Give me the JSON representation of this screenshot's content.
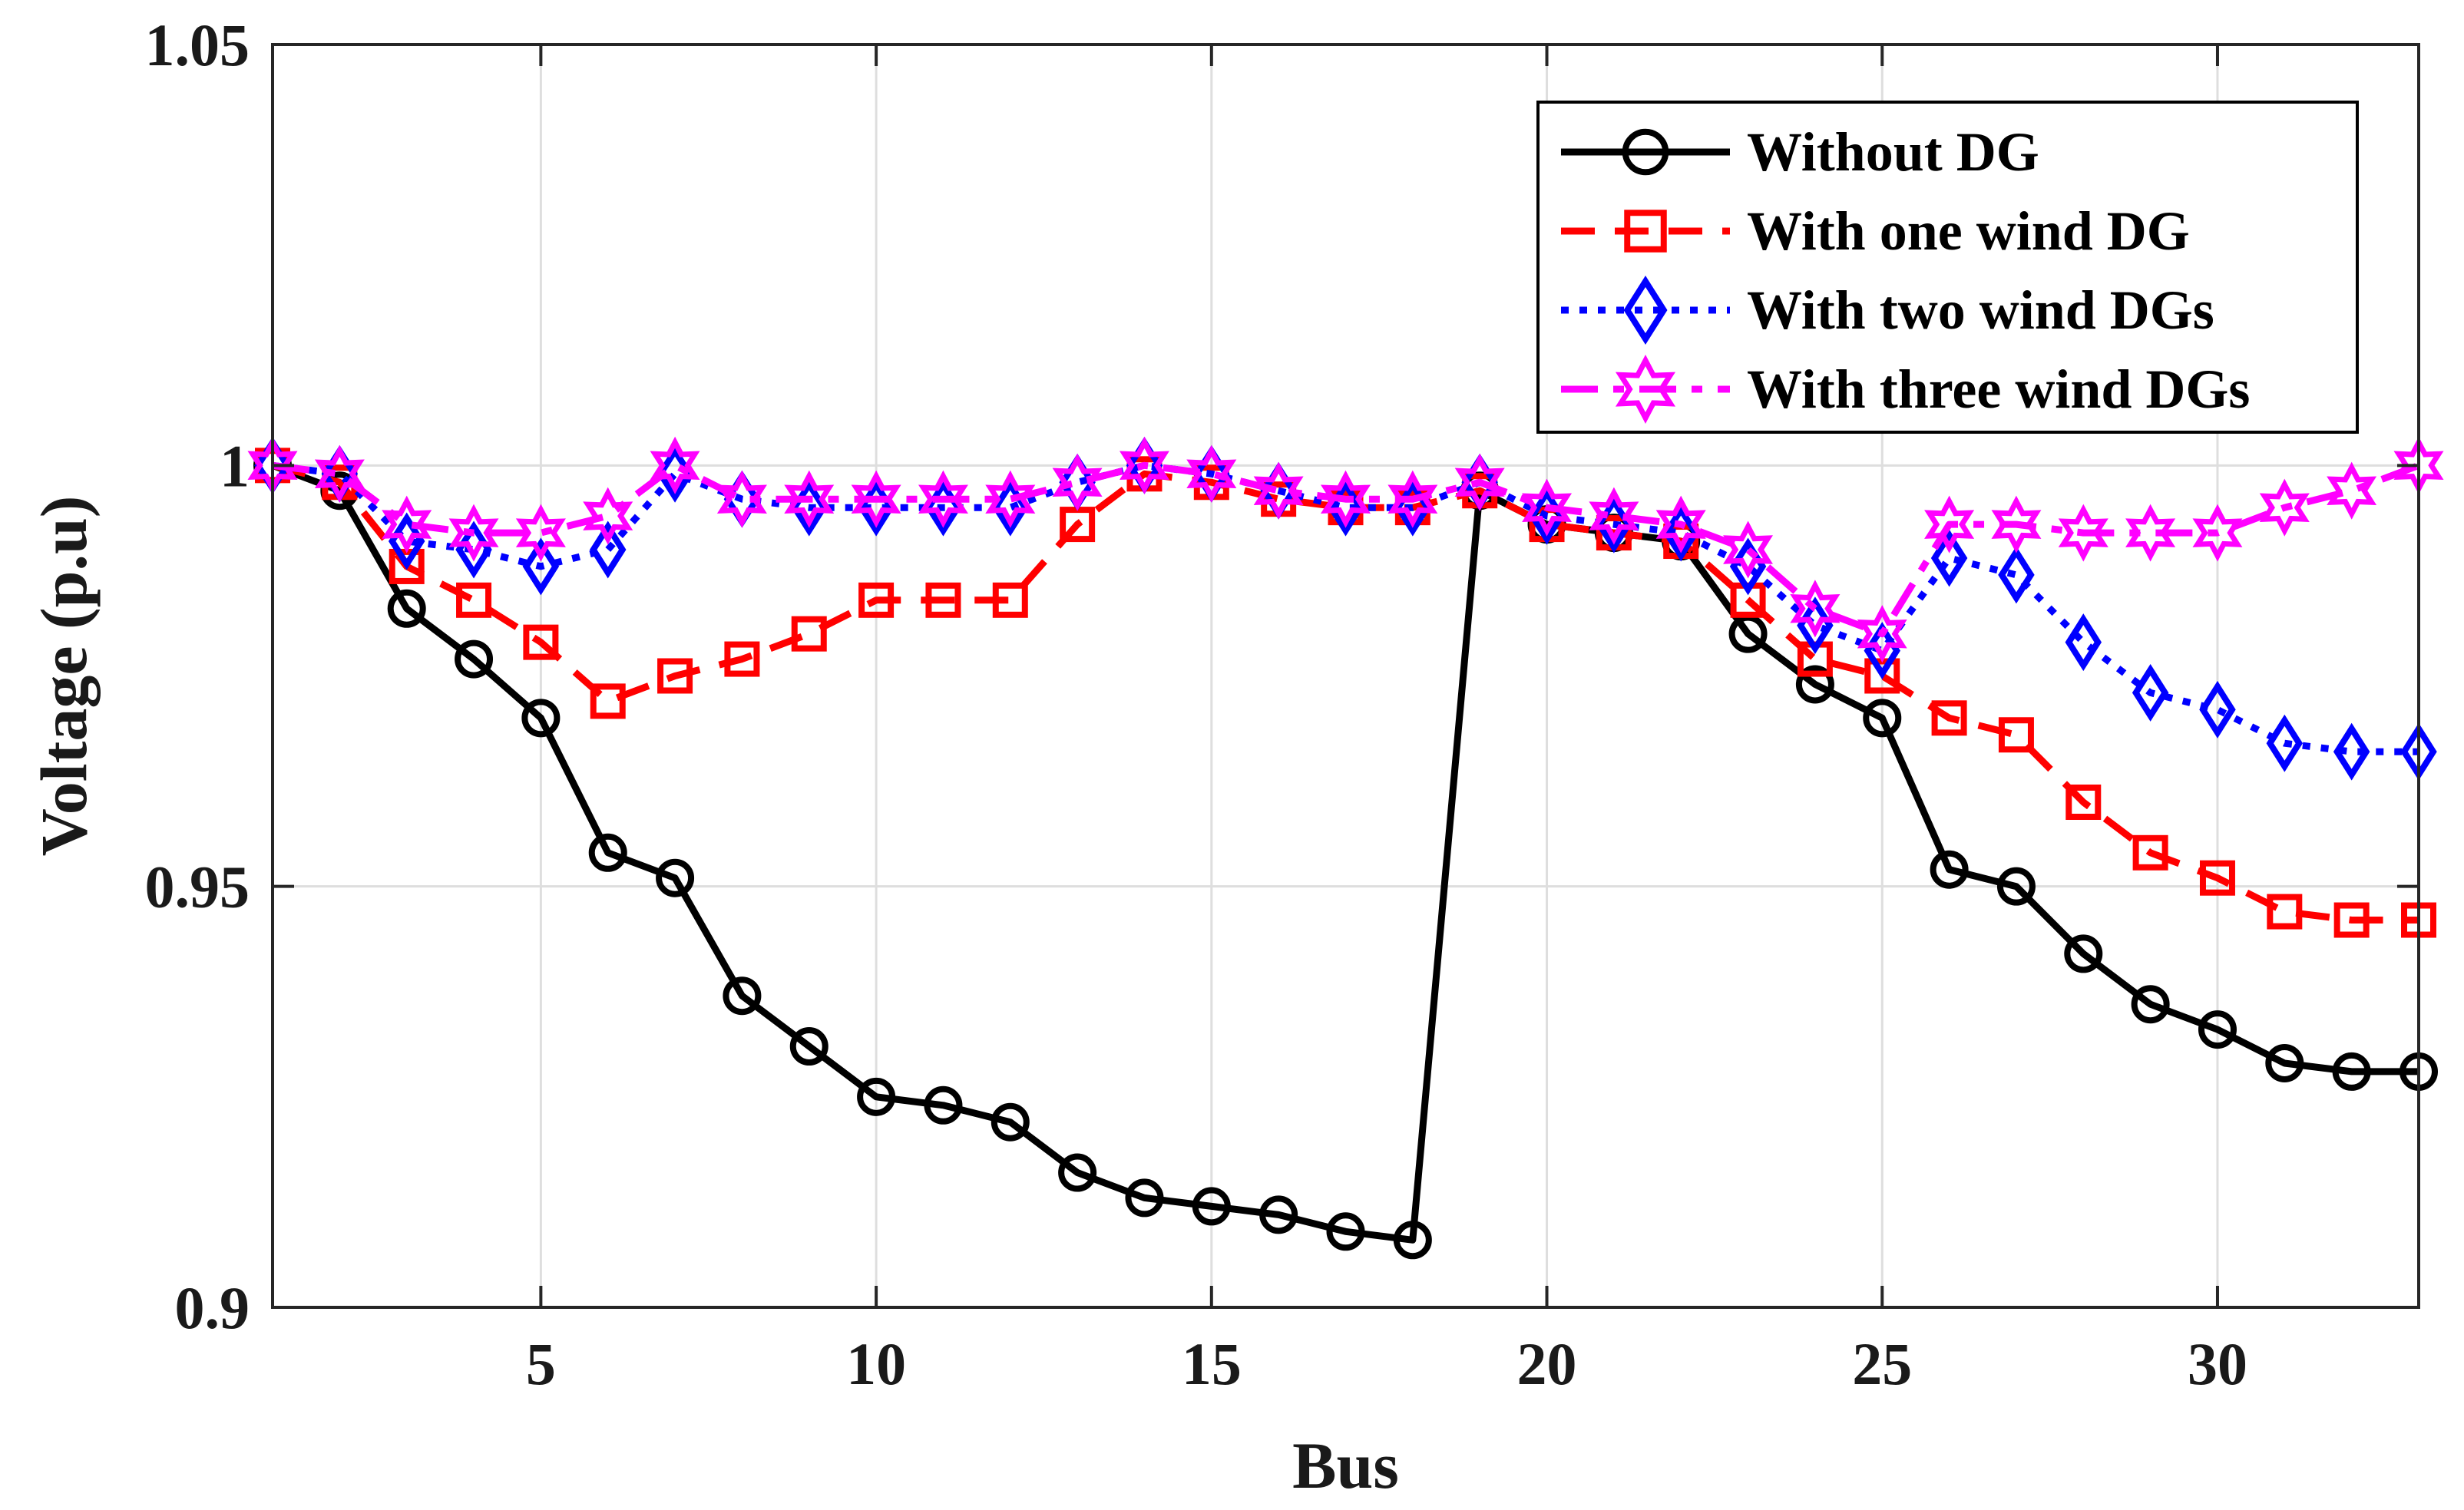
{
  "chart_data": {
    "type": "line",
    "title": "",
    "xlabel": "Bus",
    "ylabel": "Voltage (p.u)",
    "xlim": [
      1,
      33
    ],
    "ylim": [
      0.9,
      1.05
    ],
    "xticks": [
      5,
      10,
      15,
      20,
      25,
      30
    ],
    "yticks": [
      0.9,
      0.95,
      1.0,
      1.05
    ],
    "ytick_labels": [
      "0.9",
      "0.95",
      "1",
      "1.05"
    ],
    "grid": true,
    "legend_position": "top-right",
    "x": [
      1,
      2,
      3,
      4,
      5,
      6,
      7,
      8,
      9,
      10,
      11,
      12,
      13,
      14,
      15,
      16,
      17,
      18,
      19,
      20,
      21,
      22,
      23,
      24,
      25,
      26,
      27,
      28,
      29,
      30,
      31,
      32,
      33
    ],
    "series": [
      {
        "name": "Without DG",
        "color": "#000000",
        "line_style": "solid",
        "marker": "circle",
        "values": [
          1.0,
          0.997,
          0.983,
          0.977,
          0.97,
          0.954,
          0.951,
          0.937,
          0.931,
          0.925,
          0.924,
          0.922,
          0.916,
          0.913,
          0.912,
          0.911,
          0.909,
          0.908,
          0.997,
          0.993,
          0.992,
          0.991,
          0.98,
          0.974,
          0.97,
          0.952,
          0.95,
          0.942,
          0.936,
          0.933,
          0.929,
          0.928,
          0.928
        ]
      },
      {
        "name": "With one wind DG",
        "color": "#ff0000",
        "line_style": "dashed",
        "marker": "square",
        "values": [
          1.0,
          0.998,
          0.988,
          0.984,
          0.979,
          0.972,
          0.975,
          0.977,
          0.98,
          0.984,
          0.984,
          0.984,
          0.993,
          0.999,
          0.998,
          0.996,
          0.995,
          0.995,
          0.997,
          0.993,
          0.992,
          0.991,
          0.984,
          0.977,
          0.975,
          0.97,
          0.968,
          0.96,
          0.954,
          0.951,
          0.947,
          0.946,
          0.946
        ]
      },
      {
        "name": "With two wind DGs",
        "color": "#0000ff",
        "line_style": "dotted",
        "marker": "diamond",
        "values": [
          1.0,
          0.999,
          0.991,
          0.99,
          0.988,
          0.99,
          0.999,
          0.996,
          0.995,
          0.995,
          0.995,
          0.995,
          0.998,
          1.0,
          0.999,
          0.997,
          0.995,
          0.995,
          0.998,
          0.994,
          0.993,
          0.992,
          0.988,
          0.981,
          0.978,
          0.989,
          0.987,
          0.979,
          0.973,
          0.971,
          0.967,
          0.966,
          0.966
        ]
      },
      {
        "name": "With three wind DGs",
        "color": "#ff00ff",
        "line_style": "dash-dot",
        "marker": "hexagram",
        "values": [
          1.0,
          0.999,
          0.993,
          0.992,
          0.992,
          0.994,
          1.0,
          0.996,
          0.996,
          0.996,
          0.996,
          0.996,
          0.998,
          1.0,
          0.999,
          0.997,
          0.996,
          0.996,
          0.998,
          0.995,
          0.994,
          0.993,
          0.99,
          0.983,
          0.98,
          0.993,
          0.993,
          0.992,
          0.992,
          0.992,
          0.995,
          0.997,
          1.0
        ]
      }
    ]
  }
}
